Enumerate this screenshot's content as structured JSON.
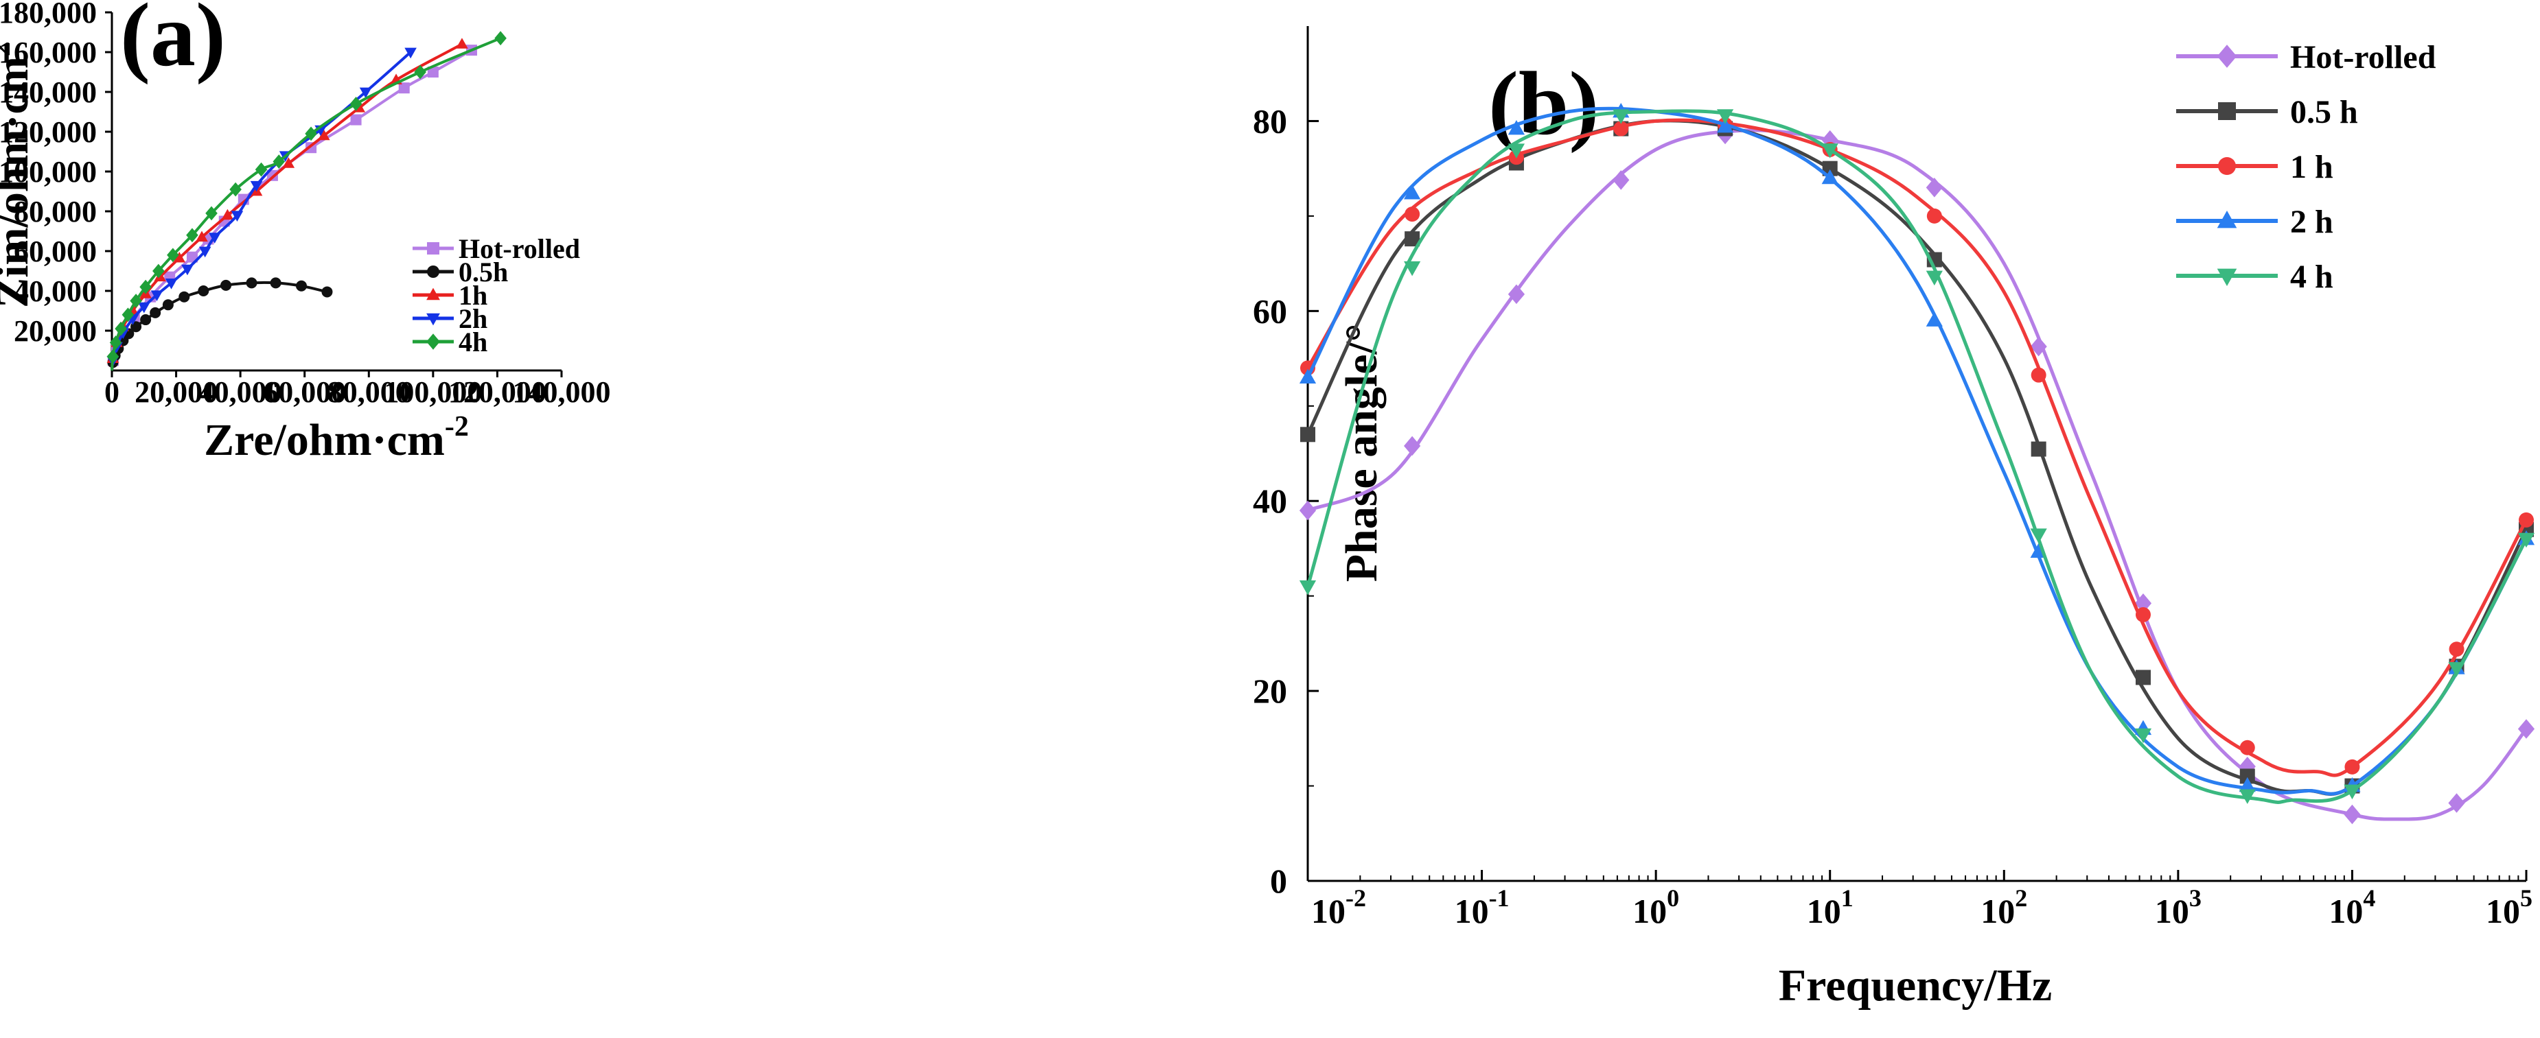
{
  "chart_data": [
    {
      "panel_label": "(a)",
      "type": "line",
      "xlabel": "Zre/ohm·cm",
      "xlabel_sup": "-2",
      "ylabel": "Zim/ohm·cm",
      "ylabel_sup": "2",
      "xlim": [
        0,
        140000
      ],
      "ylim": [
        0,
        180000
      ],
      "x_ticks": [
        0,
        20000,
        40000,
        60000,
        80000,
        100000,
        120000,
        140000
      ],
      "x_tick_labels": [
        "0",
        "20,000",
        "40,000",
        "60,000",
        "80,000",
        "100,000",
        "120,000",
        "140,000"
      ],
      "y_ticks": [
        20000,
        40000,
        60000,
        80000,
        100000,
        120000,
        140000,
        160000,
        180000
      ],
      "y_tick_labels": [
        "20,000",
        "40,000",
        "60,000",
        "80,000",
        "100,000",
        "120,000",
        "140,000",
        "160,000",
        "180,000"
      ],
      "legend_position": "lower-right",
      "series": [
        {
          "name": "Hot-rolled",
          "color": "#b57ee6",
          "marker": "square",
          "x": [
            400,
            1500,
            3500,
            7000,
            12000,
            18000,
            25000,
            30000,
            35000,
            41000,
            50000,
            62000,
            76000,
            91000,
            100000,
            112000
          ],
          "y": [
            5000,
            12000,
            19000,
            27000,
            37000,
            47000,
            57000,
            66000,
            75000,
            86000,
            98000,
            112000,
            126000,
            142000,
            150000,
            161000
          ]
        },
        {
          "name": "0.5h",
          "color": "#111111",
          "marker": "circle",
          "x": [
            300,
            1000,
            2000,
            3500,
            5200,
            7500,
            10500,
            13500,
            17500,
            22500,
            28500,
            35500,
            43500,
            51000,
            59000,
            67000
          ],
          "y": [
            4000,
            7500,
            11000,
            15000,
            18500,
            22000,
            25500,
            29000,
            33000,
            37000,
            40000,
            42800,
            44000,
            44000,
            42500,
            39500
          ]
        },
        {
          "name": "1h",
          "color": "#e8201f",
          "marker": "triangle-up",
          "x": [
            300,
            1500,
            3500,
            6500,
            10500,
            15000,
            21000,
            28000,
            36000,
            45000,
            55000,
            66000,
            77000,
            88500,
            109000
          ],
          "y": [
            6000,
            14000,
            22000,
            30000,
            38500,
            47000,
            56500,
            67000,
            78000,
            90000,
            104000,
            118000,
            132000,
            146000,
            164000
          ]
        },
        {
          "name": "2h",
          "color": "#1433e6",
          "marker": "triangle-down",
          "x": [
            300,
            1500,
            3500,
            6500,
            10000,
            14000,
            18500,
            23500,
            29000,
            32000,
            39000,
            45000,
            54000,
            65000,
            79000,
            93000
          ],
          "y": [
            5000,
            12000,
            19000,
            26000,
            32000,
            38000,
            44000,
            51000,
            60000,
            67000,
            78000,
            93000,
            108000,
            121000,
            140000,
            160000
          ]
        },
        {
          "name": "4h",
          "color": "#1fa038",
          "marker": "diamond",
          "x": [
            300,
            1200,
            2800,
            5000,
            7500,
            10500,
            14500,
            19000,
            25000,
            31000,
            38500,
            46500,
            52000,
            62000,
            76000,
            96000,
            121000
          ],
          "y": [
            7000,
            14000,
            21000,
            28000,
            35000,
            42000,
            50000,
            58000,
            68000,
            79000,
            91000,
            101000,
            105000,
            119000,
            134000,
            150000,
            167000
          ]
        }
      ]
    },
    {
      "panel_label": "(b)",
      "type": "line",
      "xlabel": "Frequency/Hz",
      "ylabel": "Phase angle/°",
      "x_scale": "log",
      "xlim": [
        0.01,
        100000
      ],
      "ylim": [
        0,
        90
      ],
      "x_ticks": [
        0.01,
        0.1,
        1,
        10,
        100,
        1000,
        10000,
        100000
      ],
      "x_tick_labels": [
        {
          "base": "10",
          "exp": "-2"
        },
        {
          "base": "10",
          "exp": "-1"
        },
        {
          "base": "10",
          "exp": "0"
        },
        {
          "base": "10",
          "exp": "1"
        },
        {
          "base": "10",
          "exp": "2"
        },
        {
          "base": "10",
          "exp": "3"
        },
        {
          "base": "10",
          "exp": "4"
        },
        {
          "base": "10",
          "exp": "5"
        }
      ],
      "y_ticks": [
        0,
        20,
        40,
        60,
        80
      ],
      "y_tick_labels": [
        "0",
        "20",
        "40",
        "60",
        "80"
      ],
      "legend_position": "top-right",
      "marker_frequencies": [
        0.01,
        0.0398,
        0.158,
        0.63,
        2.5,
        10,
        39.8,
        158,
        630,
        2500,
        10000,
        39800,
        100000
      ],
      "series": [
        {
          "name": "Hot-rolled",
          "color": "#b57ee6",
          "label_color": "#d93bf0",
          "marker": "diamond",
          "log10_f": [
            -2,
            -1.5,
            -1,
            -0.5,
            0,
            0.5,
            1,
            1.5,
            2,
            2.5,
            3,
            3.5,
            4,
            4.25,
            4.5,
            4.75,
            5
          ],
          "phase": [
            39,
            43,
            57,
            69,
            77,
            79,
            78,
            75,
            65,
            43,
            20,
            10,
            7,
            6.5,
            7,
            10,
            16
          ]
        },
        {
          "name": "0.5 h",
          "color": "#444444",
          "label_color": "#111111",
          "marker": "square",
          "log10_f": [
            -2,
            -1.5,
            -1,
            -0.5,
            0,
            0.5,
            1,
            1.5,
            2,
            2.5,
            3,
            3.5,
            3.75,
            4,
            4.5,
            5
          ],
          "phase": [
            47,
            66,
            74,
            78,
            80,
            79,
            75,
            68,
            55,
            31,
            15,
            10,
            9.5,
            10,
            19,
            37
          ]
        },
        {
          "name": "1 h",
          "color": "#f03a3a",
          "label_color": "#e8201f",
          "marker": "circle",
          "log10_f": [
            -2,
            -1.5,
            -1,
            -0.5,
            0,
            0.5,
            1,
            1.5,
            2,
            2.5,
            3,
            3.5,
            3.8,
            4,
            4.5,
            5
          ],
          "phase": [
            54,
            69,
            75,
            78,
            80,
            79.5,
            77,
            72,
            62,
            40,
            20,
            12.5,
            11.5,
            12,
            21,
            38
          ]
        },
        {
          "name": "2 h",
          "color": "#2a7ef0",
          "label_color": "#1d6fe0",
          "marker": "triangle-up",
          "log10_f": [
            -2,
            -1.5,
            -1,
            -0.5,
            0,
            0.5,
            1,
            1.5,
            2,
            2.5,
            3,
            3.5,
            3.75,
            4,
            4.5,
            5
          ],
          "phase": [
            53,
            71,
            78,
            81,
            81,
            79,
            74,
            63,
            43,
            22,
            12,
            9.5,
            9.5,
            10,
            19,
            36
          ]
        },
        {
          "name": "4 h",
          "color": "#3ab880",
          "label_color": "#1fa038",
          "marker": "triangle-down",
          "log10_f": [
            -2,
            -1.5,
            -1,
            -0.5,
            0,
            0.5,
            1,
            1.5,
            2,
            2.5,
            3,
            3.5,
            3.65,
            4,
            4.5,
            5
          ],
          "phase": [
            31,
            62,
            75,
            80,
            81,
            80.5,
            77,
            68,
            46,
            22,
            11,
            8.5,
            8.5,
            9.5,
            19,
            36
          ]
        }
      ]
    }
  ]
}
